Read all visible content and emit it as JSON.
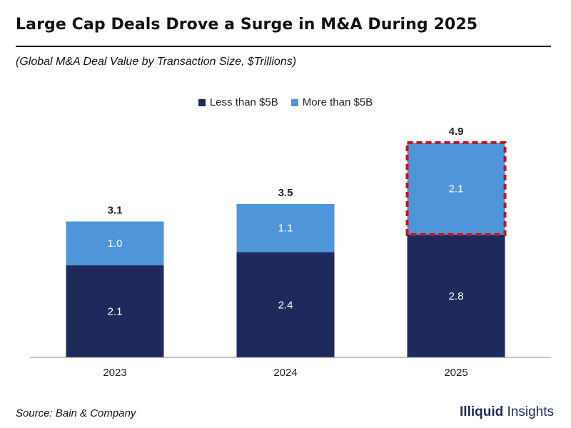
{
  "header": {
    "title": "Large Cap Deals Drove a Surge in M&A During 2025",
    "subtitle": "(Global M&A Deal Value by Transaction Size, $Trillions)"
  },
  "footer": {
    "source": "Source: Bain & Company",
    "brand_bold": "Illiquid",
    "brand_rest": " Insights"
  },
  "colors": {
    "dark": "#1f2a5c",
    "light": "#4f95d9",
    "highlight": "#c0151b"
  },
  "chart_data": {
    "type": "bar",
    "stacked": true,
    "categories": [
      "2023",
      "2024",
      "2025"
    ],
    "series": [
      {
        "name": "Less than $5B",
        "values": [
          2.1,
          2.4,
          2.8
        ],
        "labels": [
          "2.1",
          "2.4",
          "2.8"
        ]
      },
      {
        "name": "More than $5B",
        "values": [
          1.0,
          1.1,
          2.1
        ],
        "labels": [
          "1.0",
          "1.1",
          "2.1"
        ]
      }
    ],
    "totals": [
      3.1,
      3.5,
      4.9
    ],
    "total_labels": [
      "3.1",
      "3.5",
      "4.9"
    ],
    "ylim": [
      0,
      5.5
    ],
    "grid": false,
    "legend": "top-center",
    "highlight": {
      "category": "2025",
      "series": "More than $5B",
      "style": "dashed-outline"
    }
  }
}
